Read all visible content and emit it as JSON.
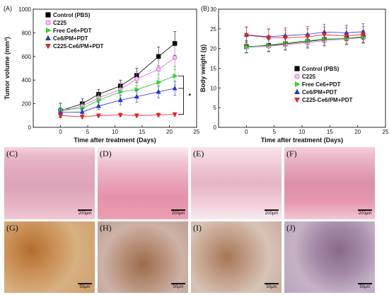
{
  "chart_data": [
    {
      "panel": "(A)",
      "type": "line",
      "xlabel": "Time after treatment (Days)",
      "ylabel": "Tumor volume (mm³)",
      "xlim": [
        -5,
        25
      ],
      "ylim": [
        0,
        1000
      ],
      "xticks": [
        "0",
        "5",
        "10",
        "15",
        "20",
        "25"
      ],
      "yticks": [
        "0",
        "200",
        "400",
        "600",
        "800",
        "1000"
      ],
      "x": [
        0,
        4,
        7,
        11,
        14,
        18,
        21
      ],
      "legend": "top-left",
      "annotation": "*",
      "series": [
        {
          "name": "Control (PBS)",
          "marker": "square",
          "color": "#000000",
          "fill": "#000000",
          "values": [
            140,
            200,
            280,
            350,
            440,
            600,
            710
          ],
          "errors": [
            60,
            40,
            40,
            50,
            60,
            80,
            100
          ]
        },
        {
          "name": "C225",
          "marker": "circle",
          "color": "#d36ad3",
          "fill": "#f0c8f0",
          "values": [
            130,
            180,
            250,
            320,
            410,
            490,
            590
          ],
          "errors": [
            50,
            40,
            40,
            50,
            60,
            80,
            100
          ]
        },
        {
          "name": "Free Ce6+PDT",
          "marker": "triangle-right",
          "color": "#22c022",
          "fill": "#33dd33",
          "values": [
            150,
            160,
            230,
            300,
            320,
            380,
            435
          ],
          "errors": [
            60,
            40,
            40,
            50,
            60,
            70,
            80
          ]
        },
        {
          "name": "Ce6/PM+PDT",
          "marker": "triangle-up",
          "color": "#1f2fd0",
          "fill": "#2233dd",
          "values": [
            125,
            130,
            180,
            230,
            260,
            300,
            330
          ],
          "errors": [
            40,
            30,
            30,
            40,
            50,
            50,
            60
          ]
        },
        {
          "name": "C225-Ce6/PM+PDT",
          "marker": "triangle-down",
          "color": "#e01b1b",
          "fill": "#ee2222",
          "values": [
            100,
            90,
            100,
            105,
            100,
            105,
            110
          ],
          "errors": [
            20,
            15,
            15,
            15,
            15,
            15,
            15
          ]
        }
      ]
    },
    {
      "panel": "(B)",
      "type": "line",
      "xlabel": "Time after treatment (Days)",
      "ylabel": "Body weight (g)",
      "xlim": [
        -5,
        25
      ],
      "ylim": [
        0,
        30
      ],
      "xticks": [
        "0",
        "5",
        "10",
        "15",
        "20",
        "25"
      ],
      "yticks": [
        "0",
        "5",
        "10",
        "15",
        "20",
        "25",
        "30"
      ],
      "x": [
        0,
        4,
        7,
        11,
        14,
        18,
        21
      ],
      "legend": "center-right",
      "series": [
        {
          "name": "Control (PBS)",
          "marker": "square",
          "color": "#000000",
          "fill": "#000000",
          "values": [
            20.5,
            20.8,
            21.2,
            21.8,
            22.3,
            22.6,
            23.0
          ],
          "errors": [
            1.5,
            1.5,
            1.5,
            1.5,
            1.5,
            1.5,
            1.5
          ]
        },
        {
          "name": "C225",
          "marker": "circle",
          "color": "#d36ad3",
          "fill": "#f0c8f0",
          "values": [
            20.3,
            20.6,
            21.0,
            21.5,
            22.0,
            22.4,
            22.8
          ],
          "errors": [
            1.5,
            1.5,
            1.5,
            1.5,
            1.5,
            1.5,
            1.5
          ]
        },
        {
          "name": "Free Ce6+PDT",
          "marker": "triangle-right",
          "color": "#22c022",
          "fill": "#33dd33",
          "values": [
            20.4,
            20.9,
            21.4,
            22.0,
            22.4,
            22.6,
            22.9
          ],
          "errors": [
            1.5,
            1.5,
            1.5,
            1.5,
            1.5,
            1.5,
            1.5
          ]
        },
        {
          "name": "Ce6/PM+PDT",
          "marker": "triangle-up",
          "color": "#1f2fd0",
          "fill": "#2233dd",
          "values": [
            23.5,
            23.0,
            23.3,
            23.6,
            24.2,
            24.0,
            24.3
          ],
          "errors": [
            2.0,
            2.0,
            2.0,
            2.0,
            2.0,
            2.0,
            2.0
          ]
        },
        {
          "name": "C225-Ce6/PM+PDT",
          "marker": "triangle-down",
          "color": "#e01b1b",
          "fill": "#ee2222",
          "values": [
            23.4,
            22.8,
            22.7,
            23.0,
            23.5,
            23.2,
            23.6
          ],
          "errors": [
            2.0,
            2.0,
            2.0,
            2.0,
            2.0,
            2.0,
            2.0
          ]
        }
      ]
    }
  ],
  "images": {
    "he": [
      {
        "label": "(C)",
        "scale": "200μm"
      },
      {
        "label": "(D)",
        "scale": "200μm"
      },
      {
        "label": "(E)",
        "scale": "200μm"
      },
      {
        "label": "(F)",
        "scale": "200μm"
      }
    ],
    "ihc": [
      {
        "label": "(G)",
        "scale": "50μm"
      },
      {
        "label": "(H)",
        "scale": "50μm"
      },
      {
        "label": "(I)",
        "scale": "50μm"
      },
      {
        "label": "(J)",
        "scale": "50μm"
      }
    ]
  }
}
